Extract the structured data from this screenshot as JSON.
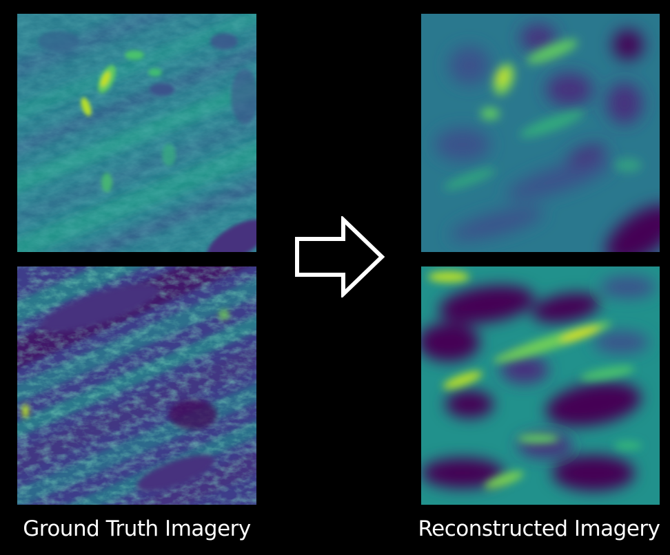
{
  "captions": {
    "left": "Ground Truth Imagery",
    "right": "Reconstructed Imagery"
  },
  "icons": {
    "arrow": "right-arrow-outline-icon"
  },
  "colors": {
    "background": "#000000",
    "viridis_dark": "#440154",
    "viridis_blue": "#3b528b",
    "viridis_teal": "#21918c",
    "viridis_green": "#5ec962",
    "viridis_yellow": "#fde725",
    "caption_text": "#ffffff"
  }
}
